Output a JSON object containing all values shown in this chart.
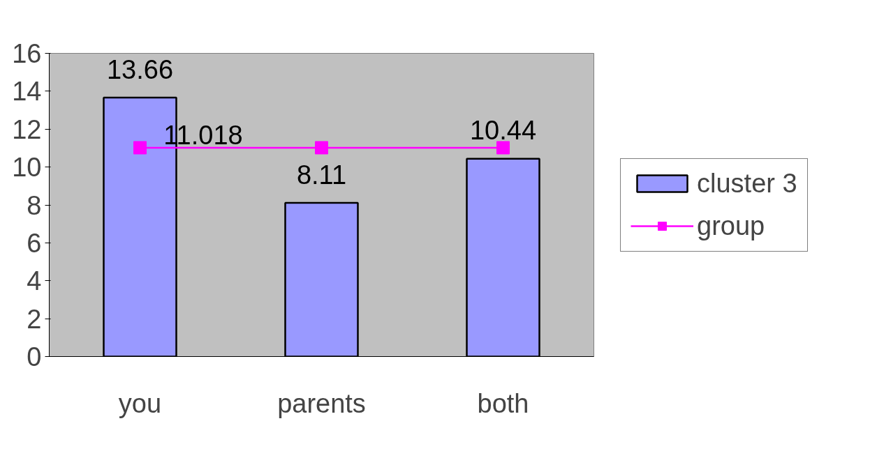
{
  "chart_data": {
    "type": "bar",
    "categories": [
      "you",
      "parents",
      "both"
    ],
    "series": [
      {
        "name": "cluster 3",
        "color": "#9999ff",
        "values": [
          13.66,
          8.11,
          10.44
        ],
        "value_labels": [
          "13.66",
          "8.11",
          "10.44"
        ]
      },
      {
        "name": "group",
        "type": "line",
        "color": "#ff00ff",
        "marker": "square",
        "values": [
          11.018,
          11.018,
          11.018
        ],
        "value_labels": [
          "11.018",
          null,
          null
        ]
      }
    ],
    "ylim": [
      0,
      16
    ],
    "yticks": [
      0,
      2,
      4,
      6,
      8,
      10,
      12,
      14,
      16
    ],
    "grid": false,
    "legend": "right"
  }
}
